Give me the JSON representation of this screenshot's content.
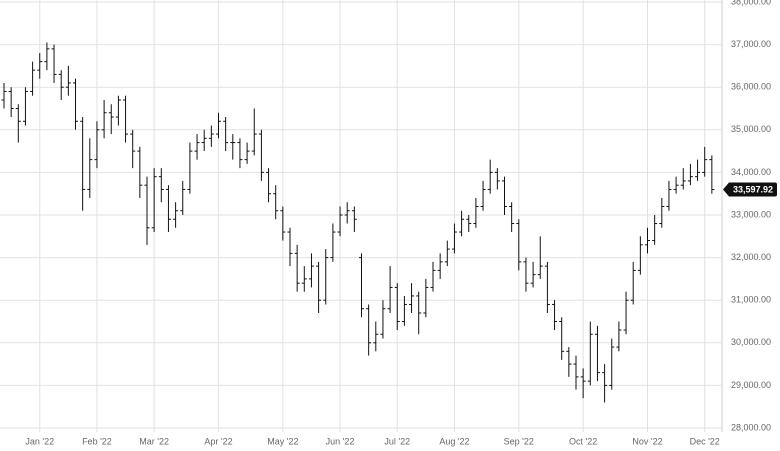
{
  "chart_data": {
    "type": "ohlc",
    "color": "#111111",
    "grid": true,
    "categories": [
      null,
      null,
      null,
      null,
      null,
      "Jan '22",
      null,
      null,
      null,
      null,
      null,
      null,
      null,
      "Feb '22",
      null,
      null,
      null,
      null,
      null,
      null,
      null,
      "Mar '22",
      null,
      null,
      null,
      null,
      null,
      null,
      null,
      null,
      "Apr '22",
      null,
      null,
      null,
      null,
      null,
      null,
      null,
      null,
      "May '22",
      null,
      null,
      null,
      null,
      null,
      null,
      null,
      "Jun '22",
      null,
      null,
      null,
      null,
      null,
      null,
      null,
      "Jul '22",
      null,
      null,
      null,
      null,
      null,
      null,
      null,
      "Aug '22",
      null,
      null,
      null,
      null,
      null,
      null,
      null,
      null,
      "Sep '22",
      null,
      null,
      null,
      null,
      null,
      null,
      null,
      null,
      "Oct '22",
      null,
      null,
      null,
      null,
      null,
      null,
      null,
      null,
      "Nov '22",
      null,
      null,
      null,
      null,
      null,
      null,
      null,
      "Dec '22",
      null
    ],
    "ohlc": [
      [
        35700,
        36100,
        35500,
        35900
      ],
      [
        35900,
        36000,
        35300,
        35500
      ],
      [
        35500,
        35600,
        34700,
        35200
      ],
      [
        35200,
        36000,
        35100,
        35900
      ],
      [
        35900,
        36600,
        35800,
        36400
      ],
      [
        36400,
        36800,
        36200,
        36600
      ],
      [
        36600,
        37050,
        36400,
        36900
      ],
      [
        36900,
        37000,
        36100,
        36300
      ],
      [
        36300,
        36400,
        35700,
        36000
      ],
      [
        36000,
        36500,
        35800,
        36100
      ],
      [
        36100,
        36200,
        35000,
        35200
      ],
      [
        35200,
        35300,
        33100,
        33600
      ],
      [
        33600,
        34800,
        33400,
        34300
      ],
      [
        34300,
        35200,
        34100,
        35000
      ],
      [
        35000,
        35700,
        34800,
        35400
      ],
      [
        35400,
        35600,
        34900,
        35300
      ],
      [
        35300,
        35800,
        35100,
        35700
      ],
      [
        35700,
        35800,
        34700,
        34900
      ],
      [
        34900,
        35000,
        34100,
        34500
      ],
      [
        34500,
        34600,
        33400,
        33700
      ],
      [
        33700,
        33900,
        32300,
        32700
      ],
      [
        32700,
        34100,
        32600,
        33900
      ],
      [
        33900,
        34100,
        33300,
        33600
      ],
      [
        33600,
        33700,
        32600,
        32900
      ],
      [
        32900,
        33300,
        32700,
        33100
      ],
      [
        33100,
        33800,
        33000,
        33600
      ],
      [
        33600,
        34700,
        33500,
        34500
      ],
      [
        34500,
        34900,
        34300,
        34700
      ],
      [
        34700,
        35000,
        34500,
        34800
      ],
      [
        34800,
        35100,
        34600,
        34900
      ],
      [
        34900,
        35400,
        34800,
        35200
      ],
      [
        35200,
        35300,
        34500,
        34700
      ],
      [
        34700,
        34900,
        34300,
        34700
      ],
      [
        34700,
        34800,
        34100,
        34300
      ],
      [
        34300,
        34700,
        34200,
        34500
      ],
      [
        34500,
        35500,
        34400,
        34900
      ],
      [
        34900,
        35000,
        33800,
        34000
      ],
      [
        34000,
        34100,
        33300,
        33500
      ],
      [
        33500,
        33700,
        32900,
        33100
      ],
      [
        33100,
        33200,
        32400,
        32600
      ],
      [
        32600,
        32700,
        31800,
        32100
      ],
      [
        32100,
        32300,
        31200,
        31400
      ],
      [
        31400,
        31800,
        31200,
        31500
      ],
      [
        31500,
        32100,
        31300,
        31800
      ],
      [
        31800,
        31900,
        30700,
        31000
      ],
      [
        31000,
        32200,
        30900,
        32000
      ],
      [
        32000,
        32800,
        31900,
        32600
      ],
      [
        32600,
        33200,
        32500,
        33000
      ],
      [
        33000,
        33300,
        32800,
        33100
      ],
      [
        33100,
        33200,
        32600,
        32900
      ],
      [
        32000,
        32100,
        30600,
        30800
      ],
      [
        30800,
        30900,
        29700,
        30000
      ],
      [
        30000,
        30500,
        29800,
        30200
      ],
      [
        30200,
        31000,
        30100,
        30800
      ],
      [
        30800,
        31800,
        30700,
        31300
      ],
      [
        31300,
        31400,
        30300,
        30500
      ],
      [
        30500,
        31100,
        30400,
        30900
      ],
      [
        30900,
        31400,
        30700,
        31100
      ],
      [
        31100,
        31200,
        30200,
        30700
      ],
      [
        30700,
        31500,
        30600,
        31300
      ],
      [
        31300,
        31900,
        31200,
        31700
      ],
      [
        31700,
        32100,
        31500,
        31900
      ],
      [
        31900,
        32400,
        31800,
        32200
      ],
      [
        32200,
        32800,
        32100,
        32600
      ],
      [
        32600,
        33100,
        32500,
        32900
      ],
      [
        32900,
        33000,
        32600,
        32800
      ],
      [
        32800,
        33400,
        32700,
        33200
      ],
      [
        33200,
        33800,
        33100,
        33600
      ],
      [
        33600,
        34300,
        33500,
        34000
      ],
      [
        34000,
        34100,
        33600,
        33800
      ],
      [
        33800,
        33900,
        33000,
        33200
      ],
      [
        33200,
        33300,
        32600,
        32800
      ],
      [
        32800,
        32900,
        31700,
        31900
      ],
      [
        31900,
        32000,
        31200,
        31400
      ],
      [
        31400,
        31900,
        31300,
        31600
      ],
      [
        31600,
        32500,
        31500,
        31800
      ],
      [
        31800,
        31900,
        30700,
        30900
      ],
      [
        30900,
        31000,
        30300,
        30500
      ],
      [
        30500,
        30600,
        29600,
        29800
      ],
      [
        29800,
        29900,
        29200,
        29500
      ],
      [
        29500,
        29700,
        28900,
        29200
      ],
      [
        29200,
        29400,
        28700,
        29100
      ],
      [
        29100,
        30500,
        29000,
        30200
      ],
      [
        30200,
        30400,
        29100,
        29300
      ],
      [
        29300,
        29500,
        28600,
        29000
      ],
      [
        29000,
        30100,
        28900,
        29900
      ],
      [
        29900,
        30500,
        29800,
        30300
      ],
      [
        30300,
        31200,
        30200,
        31000
      ],
      [
        31000,
        31900,
        30900,
        31700
      ],
      [
        31700,
        32500,
        31600,
        32300
      ],
      [
        32300,
        32700,
        32100,
        32400
      ],
      [
        32400,
        33000,
        32300,
        32800
      ],
      [
        32800,
        33400,
        32700,
        33200
      ],
      [
        33200,
        33800,
        33100,
        33600
      ],
      [
        33600,
        33900,
        33500,
        33700
      ],
      [
        33700,
        34100,
        33600,
        33800
      ],
      [
        33800,
        34200,
        33700,
        33900
      ],
      [
        33900,
        34300,
        33800,
        34000
      ],
      [
        34000,
        34600,
        33900,
        34300
      ],
      [
        34300,
        34400,
        33500,
        33597.92
      ]
    ],
    "last_price": {
      "value": 33597.92,
      "label": "33,597.92"
    },
    "ylim": [
      28000,
      38000
    ],
    "yticks": [
      {
        "value": 28000,
        "label": "28,000.00"
      },
      {
        "value": 29000,
        "label": "29,000.00"
      },
      {
        "value": 30000,
        "label": "30,000.00"
      },
      {
        "value": 31000,
        "label": "31,000.00"
      },
      {
        "value": 32000,
        "label": "32,000.00"
      },
      {
        "value": 33000,
        "label": "33,000.00"
      },
      {
        "value": 34000,
        "label": "34,000.00"
      },
      {
        "value": 35000,
        "label": "35,000.00"
      },
      {
        "value": 36000,
        "label": "36,000.00"
      },
      {
        "value": 37000,
        "label": "37,000.00"
      },
      {
        "value": 38000,
        "label": "38,000.00"
      }
    ]
  }
}
